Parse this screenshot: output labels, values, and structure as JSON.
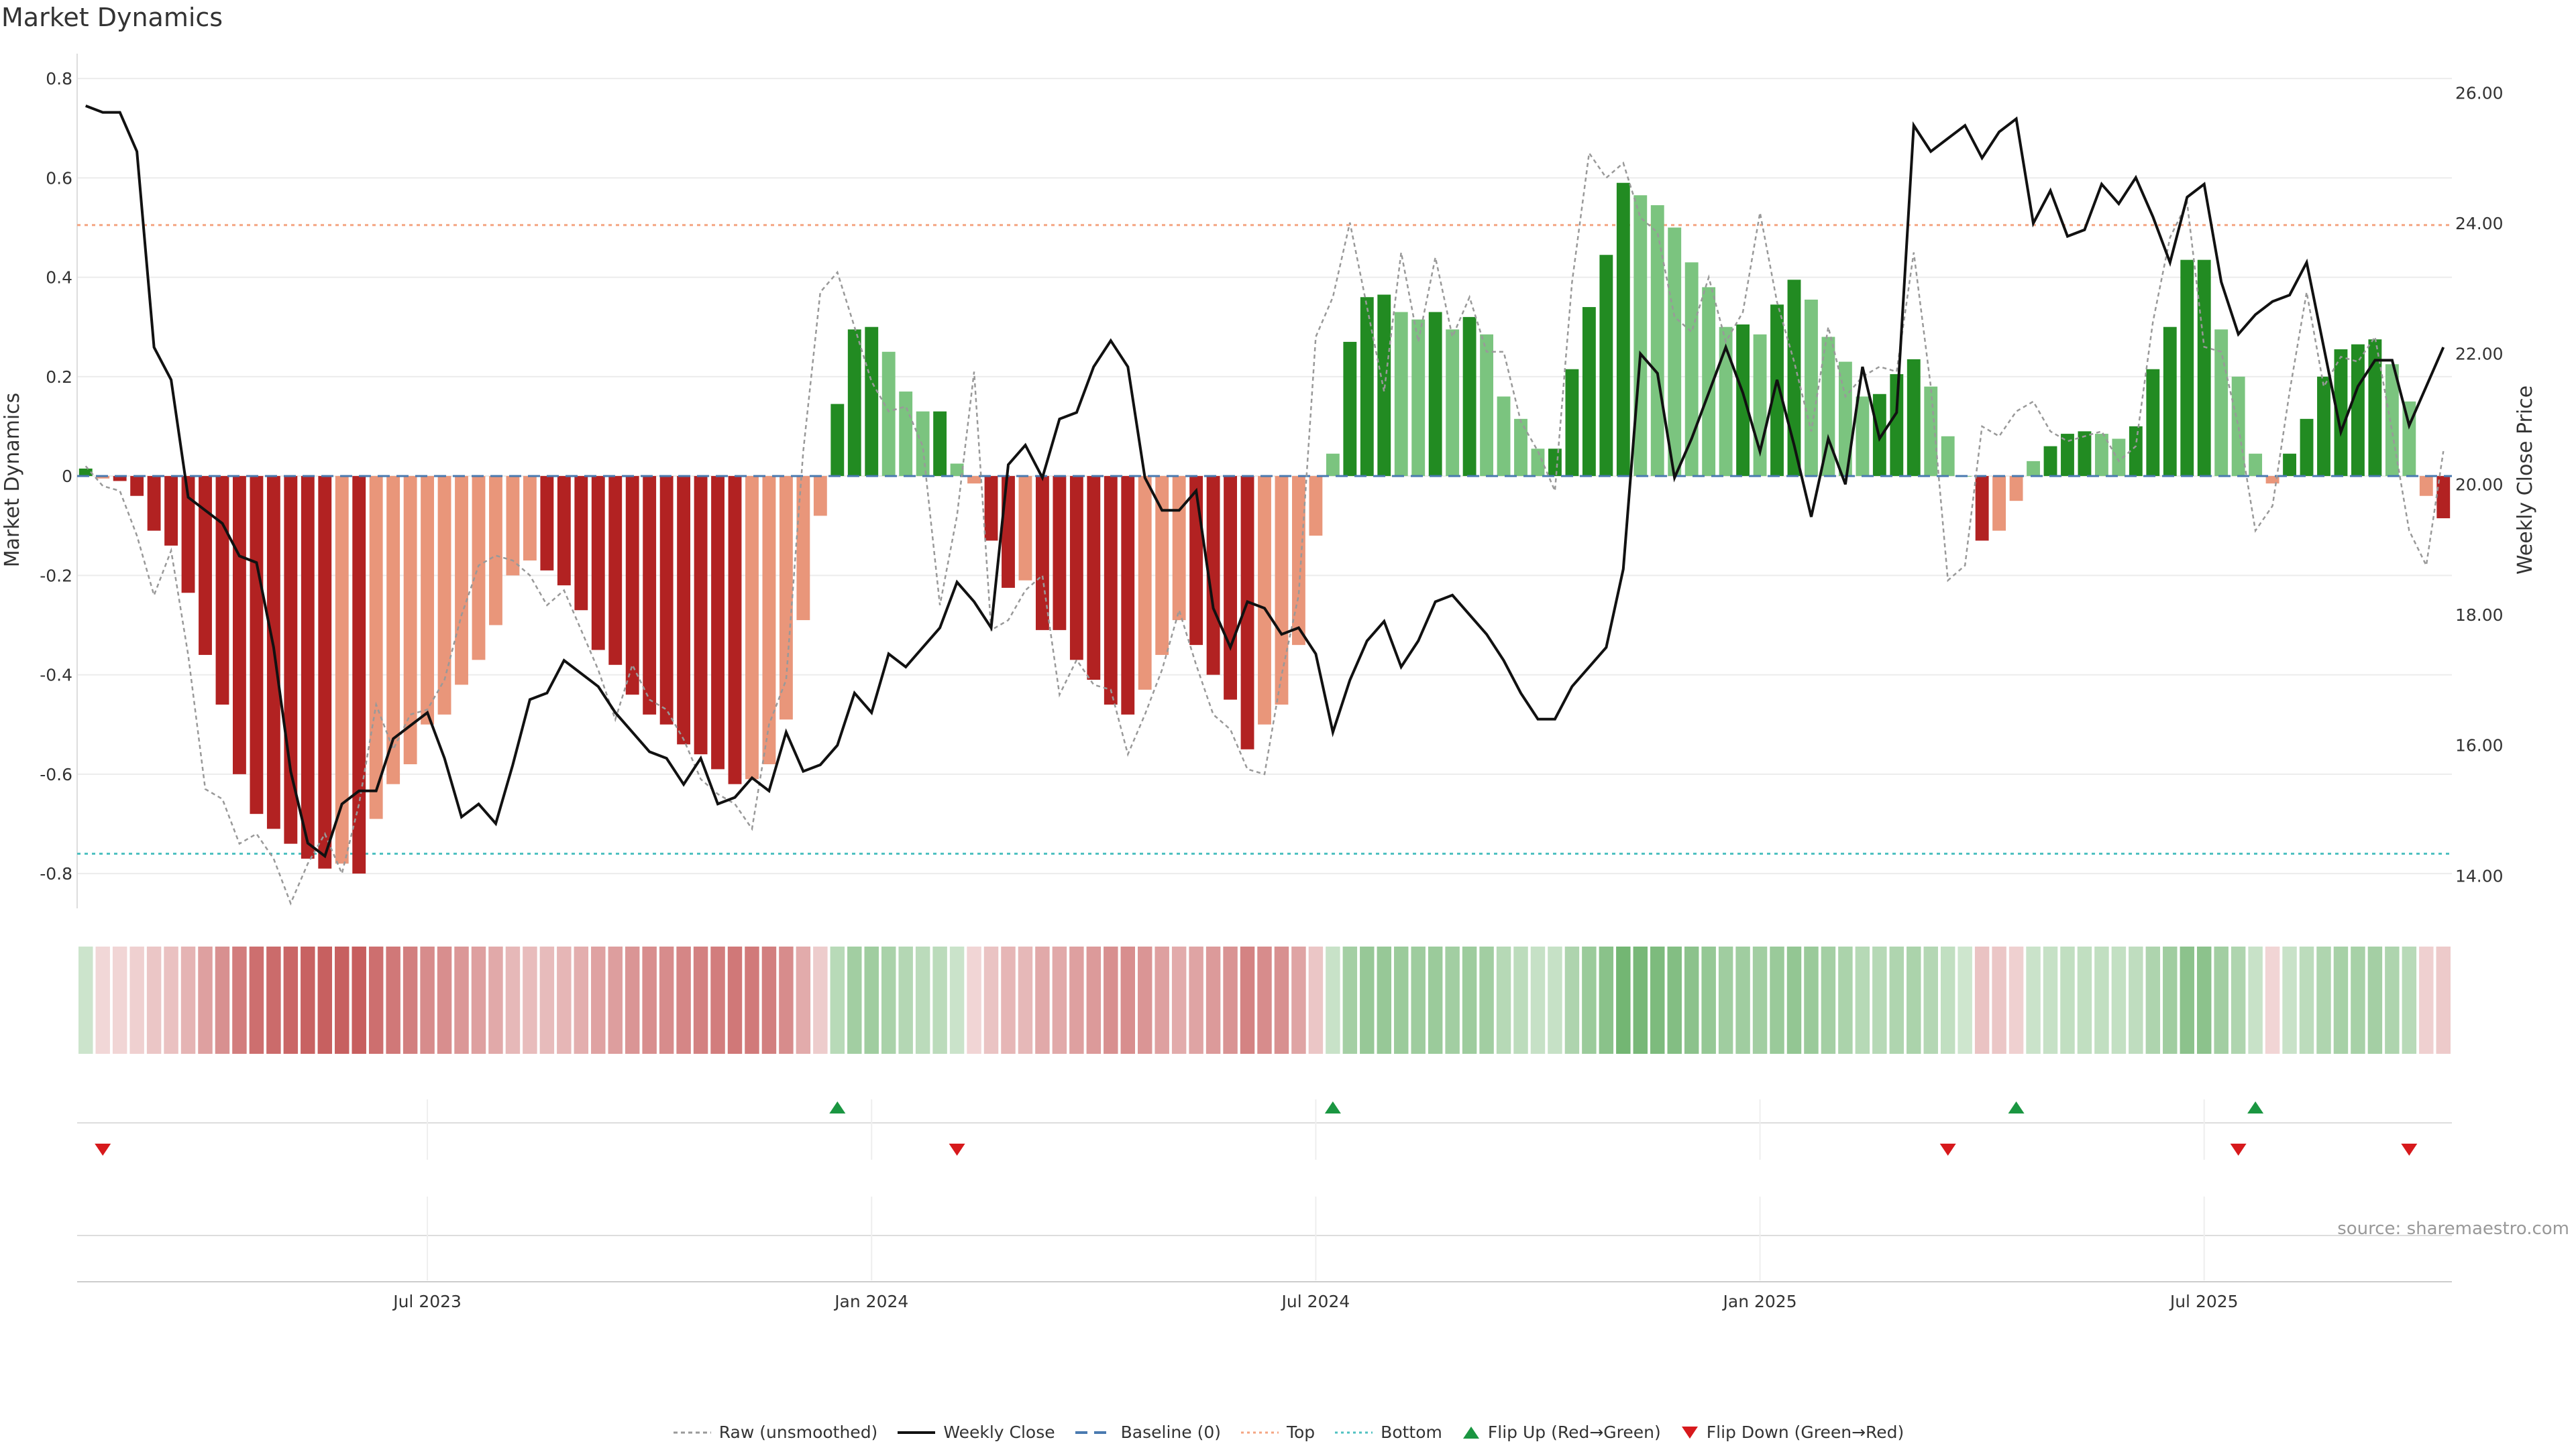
{
  "title": "Market Dynamics",
  "source": "source: sharemaestro.com",
  "chart_data": {
    "type": "bar",
    "left_axis": {
      "label": "Market Dynamics",
      "ylim": [
        -0.87,
        0.85
      ],
      "ticks": [
        "0.8",
        "0.6",
        "0.4",
        "0.2",
        "0",
        "-0.2",
        "-0.4",
        "-0.6",
        "-0.8"
      ]
    },
    "right_axis": {
      "label": "Weekly Close Price",
      "ylim": [
        13.5,
        26.6
      ],
      "ticks": [
        "26.00",
        "24.00",
        "22.00",
        "20.00",
        "18.00",
        "16.00",
        "14.00"
      ]
    },
    "x_ticks": [
      "Jul 2023",
      "Jan 2024",
      "Jul 2024",
      "Jan 2025",
      "Jul 2025"
    ],
    "x_tick_week_index": [
      20,
      46,
      72,
      98,
      124
    ],
    "reference_lines": {
      "top": 0.505,
      "bottom": -0.76,
      "baseline": 0
    },
    "bars": [
      0.015,
      -0.005,
      -0.01,
      -0.04,
      -0.11,
      -0.14,
      -0.235,
      -0.36,
      -0.46,
      -0.6,
      -0.68,
      -0.71,
      -0.74,
      -0.77,
      -0.79,
      -0.78,
      -0.8,
      -0.69,
      -0.62,
      -0.58,
      -0.5,
      -0.48,
      -0.42,
      -0.37,
      -0.3,
      -0.2,
      -0.17,
      -0.19,
      -0.22,
      -0.27,
      -0.35,
      -0.38,
      -0.44,
      -0.48,
      -0.5,
      -0.54,
      -0.56,
      -0.59,
      -0.62,
      -0.61,
      -0.58,
      -0.49,
      -0.29,
      -0.08,
      0.145,
      0.295,
      0.3,
      0.25,
      0.17,
      0.13,
      0.13,
      0.025,
      -0.015,
      -0.13,
      -0.225,
      -0.21,
      -0.31,
      -0.31,
      -0.37,
      -0.41,
      -0.46,
      -0.48,
      -0.43,
      -0.36,
      -0.29,
      -0.34,
      -0.4,
      -0.45,
      -0.55,
      -0.5,
      -0.46,
      -0.34,
      -0.12,
      0.045,
      0.27,
      0.36,
      0.365,
      0.33,
      0.315,
      0.33,
      0.295,
      0.32,
      0.285,
      0.16,
      0.115,
      0.055,
      0.055,
      0.215,
      0.34,
      0.445,
      0.59,
      0.565,
      0.545,
      0.5,
      0.43,
      0.38,
      0.3,
      0.305,
      0.285,
      0.345,
      0.395,
      0.355,
      0.28,
      0.23,
      0.16,
      0.165,
      0.205,
      0.235,
      0.18,
      0.08,
      0.0,
      -0.13,
      -0.11,
      -0.05,
      0.03,
      0.06,
      0.085,
      0.09,
      0.085,
      0.075,
      0.1,
      0.215,
      0.3,
      0.435,
      0.435,
      0.295,
      0.2,
      0.045,
      -0.015,
      0.045,
      0.115,
      0.2,
      0.255,
      0.265,
      0.275,
      0.225,
      0.15,
      -0.04,
      -0.085
    ],
    "series": [
      {
        "name": "Raw (unsmoothed)",
        "values": [
          0.02,
          -0.02,
          -0.03,
          -0.12,
          -0.24,
          -0.15,
          -0.36,
          -0.63,
          -0.65,
          -0.74,
          -0.72,
          -0.77,
          -0.86,
          -0.78,
          -0.72,
          -0.8,
          -0.66,
          -0.46,
          -0.55,
          -0.48,
          -0.47,
          -0.41,
          -0.28,
          -0.18,
          -0.16,
          -0.17,
          -0.2,
          -0.26,
          -0.23,
          -0.31,
          -0.39,
          -0.49,
          -0.38,
          -0.45,
          -0.47,
          -0.53,
          -0.61,
          -0.64,
          -0.66,
          -0.71,
          -0.5,
          -0.41,
          0.05,
          0.37,
          0.41,
          0.3,
          0.19,
          0.13,
          0.14,
          0.06,
          -0.26,
          -0.08,
          0.21,
          -0.31,
          -0.29,
          -0.23,
          -0.2,
          -0.44,
          -0.37,
          -0.42,
          -0.43,
          -0.56,
          -0.48,
          -0.39,
          -0.27,
          -0.38,
          -0.48,
          -0.51,
          -0.59,
          -0.6,
          -0.4,
          -0.24,
          0.28,
          0.36,
          0.51,
          0.34,
          0.17,
          0.45,
          0.27,
          0.44,
          0.28,
          0.36,
          0.25,
          0.25,
          0.11,
          0.05,
          -0.03,
          0.39,
          0.65,
          0.6,
          0.63,
          0.52,
          0.49,
          0.32,
          0.29,
          0.4,
          0.27,
          0.33,
          0.53,
          0.35,
          0.23,
          0.09,
          0.3,
          0.16,
          0.2,
          0.22,
          0.21,
          0.45,
          0.18,
          -0.21,
          -0.18,
          0.1,
          0.08,
          0.13,
          0.15,
          0.09,
          0.07,
          0.08,
          0.09,
          0.03,
          0.06,
          0.31,
          0.48,
          0.55,
          0.26,
          0.25,
          0.1,
          -0.11,
          -0.06,
          0.17,
          0.37,
          0.18,
          0.24,
          0.23,
          0.28,
          0.09,
          -0.11,
          -0.18,
          0.05
        ]
      },
      {
        "name": "Weekly Close",
        "values": [
          25.8,
          25.7,
          25.7,
          25.1,
          22.1,
          21.6,
          19.8,
          19.6,
          19.4,
          18.9,
          18.8,
          17.5,
          15.6,
          14.5,
          14.3,
          15.1,
          15.3,
          15.3,
          16.1,
          16.3,
          16.5,
          15.8,
          14.9,
          15.1,
          14.8,
          15.7,
          16.7,
          16.8,
          17.3,
          17.1,
          16.9,
          16.5,
          16.2,
          15.9,
          15.8,
          15.4,
          15.8,
          15.1,
          15.2,
          15.5,
          15.3,
          16.2,
          15.6,
          15.7,
          16.0,
          16.8,
          16.5,
          17.4,
          17.2,
          17.5,
          17.8,
          18.5,
          18.2,
          17.8,
          20.3,
          20.6,
          20.1,
          21.0,
          21.1,
          21.8,
          22.2,
          21.8,
          20.1,
          19.6,
          19.6,
          19.9,
          18.1,
          17.5,
          18.2,
          18.1,
          17.7,
          17.8,
          17.4,
          16.2,
          17.0,
          17.6,
          17.9,
          17.2,
          17.6,
          18.2,
          18.3,
          18.0,
          17.7,
          17.3,
          16.8,
          16.4,
          16.4,
          16.9,
          17.2,
          17.5,
          18.7,
          22.0,
          21.7,
          20.1,
          20.7,
          21.4,
          22.1,
          21.4,
          20.5,
          21.6,
          20.6,
          19.5,
          20.7,
          20.0,
          21.8,
          20.7,
          21.1,
          25.5,
          25.1,
          25.3,
          25.5,
          25.0,
          25.4,
          25.6,
          24.0,
          24.5,
          23.8,
          23.9,
          24.6,
          24.3,
          24.7,
          24.1,
          23.4,
          24.4,
          24.6,
          23.1,
          22.3,
          22.6,
          22.8,
          22.9,
          23.4,
          22.1,
          20.8,
          21.5,
          21.9,
          21.9,
          20.9,
          21.5,
          22.1
        ]
      },
      {
        "name": "Baseline (0)"
      },
      {
        "name": "Top"
      },
      {
        "name": "Bottom"
      }
    ],
    "flip_up_weeks": [
      44,
      73,
      113,
      127
    ],
    "flip_down_weeks": [
      1,
      51,
      109,
      126,
      136
    ],
    "flip_up_label": "Flip Up (Red→Green)",
    "flip_down_label": "Flip Down (Green→Red)",
    "colors": {
      "strong_green": "#228b22",
      "light_green": "#7bc47f",
      "strong_red": "#b22222",
      "light_red": "#e9967a",
      "weekly_close": "#111111",
      "raw": "#999999",
      "baseline": "#4a7ab0",
      "top": "#f4a582",
      "bottom": "#4fc1c1",
      "flip_up": "#1a9641",
      "flip_down": "#d7191c"
    }
  }
}
